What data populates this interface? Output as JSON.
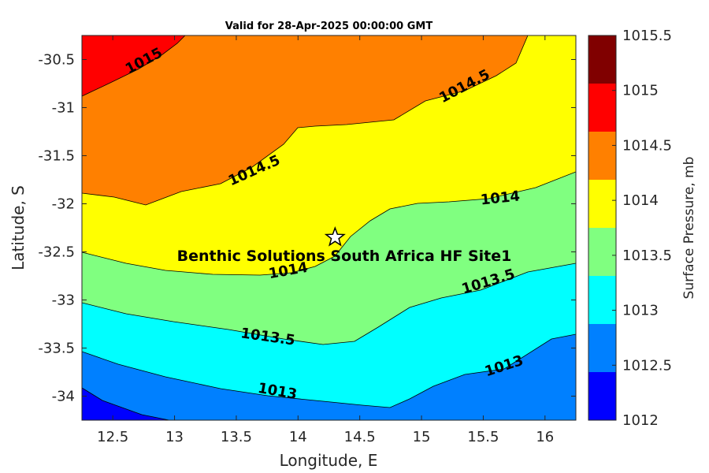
{
  "title": "Valid for 28-Apr-2025 00:00:00 GMT",
  "x_axis": {
    "label": "Longitude, E",
    "ticks": [
      "12.5",
      "13",
      "13.5",
      "14",
      "14.5",
      "15",
      "15.5",
      "16"
    ]
  },
  "y_axis": {
    "label": "Latitude, S",
    "ticks": [
      "-30.5",
      "-31",
      "-31.5",
      "-32",
      "-32.5",
      "-33",
      "-33.5",
      "-34"
    ]
  },
  "colorbar": {
    "label": "Surface Pressure, mb",
    "ticks": [
      "1015.5",
      "1015",
      "1014.5",
      "1014",
      "1013.5",
      "1013",
      "1012.5",
      "1012"
    ],
    "colors": [
      "#800000",
      "#ff0000",
      "#ff8000",
      "#ffff00",
      "#80ff80",
      "#00ffff",
      "#0080ff",
      "#0000ff"
    ]
  },
  "contour_labels": [
    {
      "text": "1015",
      "angle": -28
    },
    {
      "text": "1014.5",
      "angle": -24
    },
    {
      "text": "1014.5",
      "angle": -28
    },
    {
      "text": "1014",
      "angle": -6
    },
    {
      "text": "1014",
      "angle": -10
    },
    {
      "text": "1013.5",
      "angle": -17
    },
    {
      "text": "1013.5",
      "angle": 8
    },
    {
      "text": "1013",
      "angle": 10
    },
    {
      "text": "1013",
      "angle": -18
    }
  ],
  "site": {
    "label": "Benthic Solutions South Africa HF Site1",
    "lon": 14.3,
    "lat": -32.35
  },
  "chart_data": {
    "type": "contour",
    "title": "Valid for 28-Apr-2025 00:00:00 GMT",
    "xlabel": "Longitude, E",
    "ylabel": "Latitude, S",
    "xlim": [
      12.25,
      16.25
    ],
    "ylim": [
      -34.25,
      -30.25
    ],
    "colorbar_label": "Surface Pressure, mb",
    "color_range": [
      1012,
      1015.5
    ],
    "contour_levels": [
      1012.5,
      1013,
      1013.5,
      1014,
      1014.5,
      1015
    ],
    "site": {
      "name": "Benthic Solutions South Africa HF Site1",
      "lon": 14.3,
      "lat": -32.35
    }
  }
}
